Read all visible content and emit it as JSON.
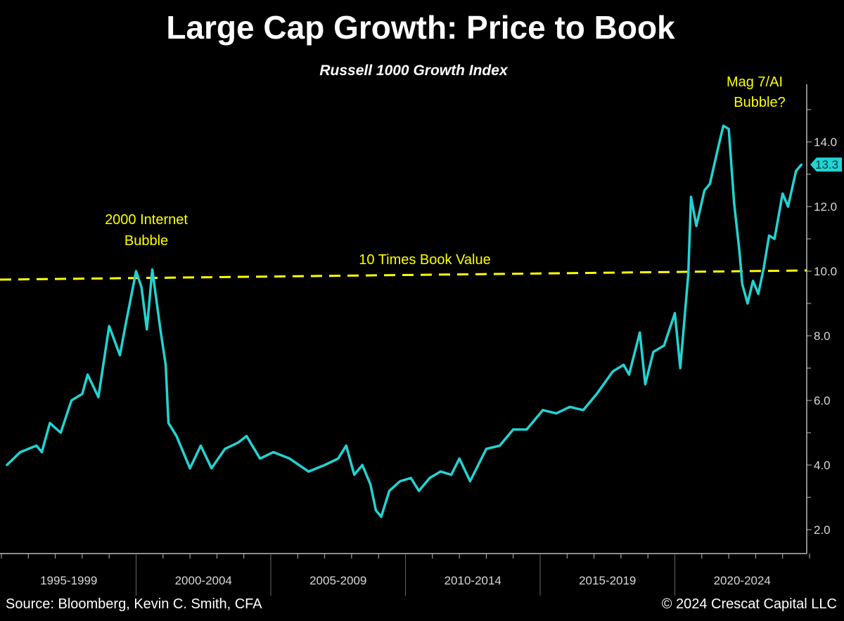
{
  "chart_data": {
    "type": "line",
    "title": "Large Cap Growth: Price to Book",
    "subtitle": "Russell 1000 Growth Index",
    "xlabel": "",
    "ylabel": "",
    "ylim": [
      1.2,
      15.5
    ],
    "xlim": [
      1995,
      2025.0
    ],
    "y_ticks": [
      "2.0",
      "4.0",
      "6.0",
      "8.0",
      "10.0",
      "12.0",
      "14.0"
    ],
    "x_categories": [
      "1995-1999",
      "2000-2004",
      "2005-2009",
      "2010-2014",
      "2015-2019",
      "2020-2024"
    ],
    "grid": false,
    "y_axis_side": "right",
    "line_color": "#22d3d3",
    "reference_line": {
      "y": 10,
      "label": "10 Times Book Value",
      "color": "#ffff00",
      "style": "dashed"
    },
    "annotations": [
      {
        "text_lines": [
          "2000 Internet",
          "Bubble"
        ],
        "color": "#ffff00"
      },
      {
        "text_lines": [
          "Mag 7/AI",
          "Bubble?"
        ],
        "color": "#ffff00"
      }
    ],
    "last_value_label": "13.3",
    "series": [
      {
        "x": [
          1995.2,
          1995.7,
          1996.3,
          1996.5,
          1996.8,
          1997.2,
          1997.6,
          1998.0,
          1998.2,
          1998.6,
          1999.0,
          1999.4,
          1999.6,
          2000.0,
          2000.2,
          2000.4,
          2000.6,
          2000.9,
          2001.1,
          2001.2,
          2001.5,
          2001.8,
          2002.0,
          2002.4,
          2002.8,
          2003.3,
          2003.8,
          2004.1,
          2004.6,
          2005.1,
          2005.7,
          2006.4,
          2007.0,
          2007.5,
          2007.8,
          2008.1,
          2008.4,
          2008.7,
          2008.9,
          2009.1,
          2009.4,
          2009.8,
          2010.2,
          2010.5,
          2010.9,
          2011.3,
          2011.7,
          2012.0,
          2012.4,
          2013.0,
          2013.5,
          2014.0,
          2014.5,
          2015.1,
          2015.6,
          2016.1,
          2016.6,
          2017.1,
          2017.7,
          2018.1,
          2018.3,
          2018.7,
          2018.9,
          2019.2,
          2019.6,
          2020.0,
          2020.2,
          2020.5,
          2020.6,
          2020.8,
          2021.1,
          2021.3,
          2021.6,
          2021.8,
          2022.0,
          2022.2,
          2022.4,
          2022.5,
          2022.7,
          2022.9,
          2023.1,
          2023.3,
          2023.5,
          2023.7,
          2024.0,
          2024.2,
          2024.5,
          2024.7
        ],
        "y": [
          4.0,
          4.4,
          4.6,
          4.4,
          5.3,
          5.0,
          6.0,
          6.2,
          6.8,
          6.1,
          8.3,
          7.4,
          8.3,
          10.0,
          9.5,
          8.2,
          10.05,
          8.2,
          7.1,
          5.3,
          4.9,
          4.3,
          3.9,
          4.6,
          3.9,
          4.5,
          4.7,
          4.9,
          4.2,
          4.4,
          4.2,
          3.8,
          4.0,
          4.2,
          4.6,
          3.7,
          4.0,
          3.4,
          2.6,
          2.4,
          3.2,
          3.5,
          3.6,
          3.2,
          3.6,
          3.8,
          3.7,
          4.2,
          3.5,
          4.5,
          4.6,
          5.1,
          5.1,
          5.7,
          5.6,
          5.8,
          5.7,
          6.2,
          6.9,
          7.1,
          6.8,
          8.1,
          6.5,
          7.5,
          7.7,
          8.7,
          7.0,
          9.9,
          12.3,
          11.4,
          12.5,
          12.7,
          13.8,
          14.5,
          14.4,
          12.1,
          10.6,
          9.6,
          9.0,
          9.7,
          9.3,
          10.1,
          11.1,
          11.0,
          12.4,
          12.0,
          13.1,
          13.3
        ]
      }
    ]
  },
  "footer": {
    "source": "Source: Bloomberg, Kevin C. Smith, CFA",
    "copyright": "© 2024 Crescat Capital LLC"
  }
}
